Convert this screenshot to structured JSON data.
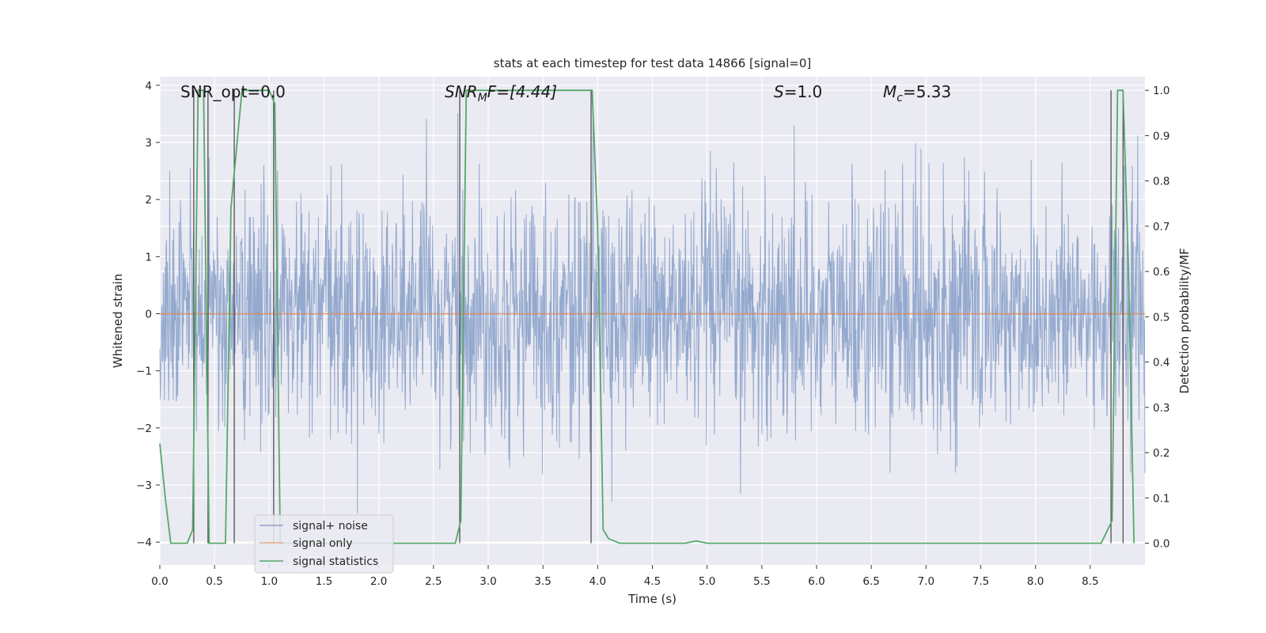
{
  "chart_data": {
    "type": "line",
    "title": "stats at each timestep for test data 14866 [signal=0]",
    "xlabel": "Time (s)",
    "ylabel_left": "Whitened strain",
    "ylabel_right": "Detection probability/MF",
    "xlim": [
      0.0,
      9.0
    ],
    "ylim_left": [
      -4.4,
      4.15
    ],
    "ylim_right": [
      -0.048,
      1.03
    ],
    "x_ticks": [
      "0.0",
      "0.5",
      "1.0",
      "1.5",
      "2.0",
      "2.5",
      "3.0",
      "3.5",
      "4.0",
      "4.5",
      "5.0",
      "5.5",
      "6.0",
      "6.5",
      "7.0",
      "7.5",
      "8.0",
      "8.5"
    ],
    "y_ticks_left": [
      "−4",
      "−3",
      "−2",
      "−1",
      "0",
      "1",
      "2",
      "3",
      "4"
    ],
    "y_ticks_right": [
      "0.0",
      "0.1",
      "0.2",
      "0.3",
      "0.4",
      "0.5",
      "0.6",
      "0.7",
      "0.8",
      "0.9",
      "1.0"
    ],
    "grid": true,
    "background": "#eaeaf2",
    "annotations": {
      "snr_opt": "SNR_opt=0.0",
      "snr_mf_base": "SNR",
      "snr_mf_sub": "M",
      "snr_mf_rest": "F=[4.44]",
      "s_base": "S",
      "s_rest": "=1.0",
      "mc_base": "M",
      "mc_sub": "c",
      "mc_rest": "=5.33"
    },
    "legend": {
      "placement": "lower-left",
      "entries": [
        "signal+ noise",
        "signal only",
        "signal statistics"
      ]
    },
    "series": [
      {
        "name": "signal+ noise",
        "color": "#4c72b0",
        "description_axis": "left",
        "amplitude_envelope": 2.5,
        "peak_extent": [
          -4.0,
          3.8
        ]
      },
      {
        "name": "signal only",
        "color": "#dd8452",
        "axis": "left",
        "x": [
          0.0,
          9.0
        ],
        "y": [
          0.0,
          0.0
        ]
      },
      {
        "name": "signal statistics",
        "color": "#55a868",
        "axis": "right",
        "x": [
          0.0,
          0.05,
          0.1,
          0.25,
          0.3,
          0.35,
          0.4,
          0.45,
          0.5,
          0.6,
          0.65,
          0.75,
          0.8,
          1.0,
          1.05,
          1.1,
          1.2,
          1.5,
          2.0,
          2.5,
          2.7,
          2.75,
          2.8,
          3.0,
          3.5,
          3.9,
          3.95,
          4.0,
          4.05,
          4.1,
          4.2,
          4.4,
          4.8,
          4.9,
          5.0,
          6.0,
          7.0,
          7.9,
          8.0,
          8.6,
          8.7,
          8.75,
          8.8,
          8.85,
          8.9
        ],
        "y": [
          0.22,
          0.1,
          0.0,
          0.0,
          0.03,
          1.0,
          1.0,
          0.0,
          0.0,
          0.0,
          0.74,
          1.0,
          1.0,
          1.0,
          0.97,
          0.0,
          0.0,
          0.0,
          0.0,
          0.0,
          0.0,
          0.05,
          1.0,
          1.0,
          1.0,
          1.0,
          1.0,
          0.7,
          0.03,
          0.01,
          0.0,
          0.0,
          0.0,
          0.005,
          0.0,
          0.0,
          0.0,
          0.0,
          0.0,
          0.0,
          0.05,
          1.0,
          1.0,
          0.6,
          0.0
        ]
      }
    ],
    "event_markers_x": [
      0.31,
      0.44,
      0.68,
      1.04,
      2.74,
      3.94,
      8.69,
      8.8
    ]
  }
}
